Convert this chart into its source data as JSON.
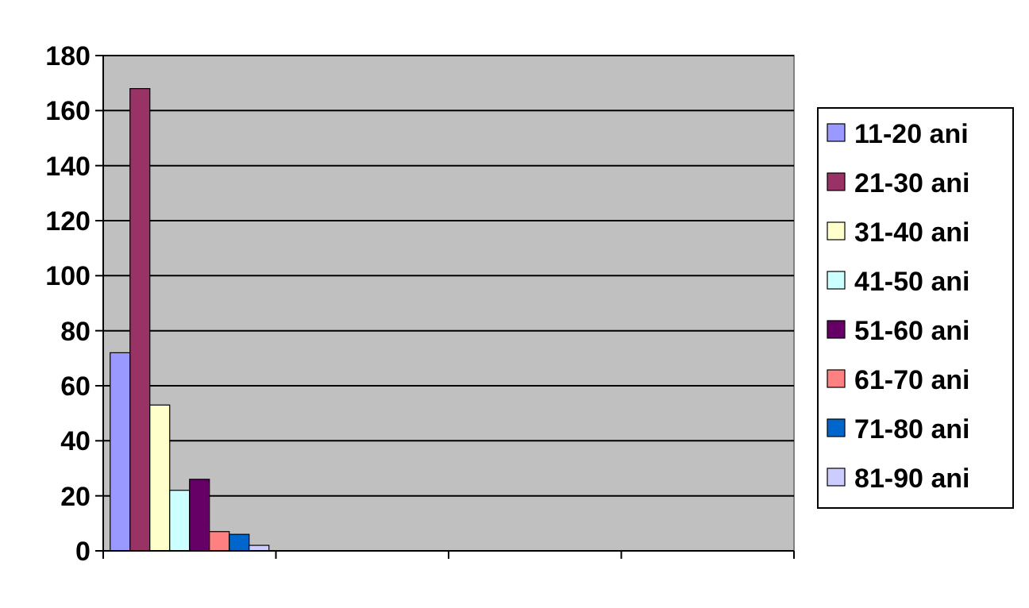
{
  "chart_data": {
    "type": "bar",
    "categories": [
      null,
      null,
      null,
      null
    ],
    "series": [
      {
        "name": "11-20 ani",
        "color": "#9999ff",
        "values": [
          72,
          null,
          null,
          null
        ]
      },
      {
        "name": "21-30 ani",
        "color": "#993366",
        "values": [
          168,
          null,
          null,
          null
        ]
      },
      {
        "name": "31-40 ani",
        "color": "#ffffcc",
        "values": [
          53,
          null,
          null,
          null
        ]
      },
      {
        "name": "41-50 ani",
        "color": "#ccffff",
        "values": [
          22,
          null,
          null,
          null
        ]
      },
      {
        "name": "51-60 ani",
        "color": "#660066",
        "values": [
          26,
          null,
          null,
          null
        ]
      },
      {
        "name": "61-70 ani",
        "color": "#ff8080",
        "values": [
          7,
          null,
          null,
          null
        ]
      },
      {
        "name": "71-80 ani",
        "color": "#0066cc",
        "values": [
          6,
          null,
          null,
          null
        ]
      },
      {
        "name": "81-90 ani",
        "color": "#ccccff",
        "values": [
          2,
          null,
          null,
          null
        ]
      }
    ],
    "ylim": [
      0,
      180
    ],
    "yticks": [
      0,
      20,
      40,
      60,
      80,
      100,
      120,
      140,
      160,
      180
    ],
    "grid": "y",
    "legend": "right"
  }
}
